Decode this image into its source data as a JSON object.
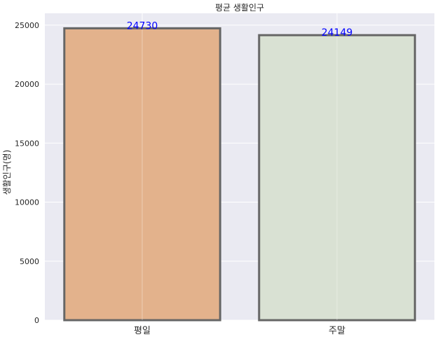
{
  "chart_data": {
    "type": "bar",
    "title": "평균 생활인구",
    "xlabel": "",
    "ylabel": "생활인구(명)",
    "categories": [
      "평일",
      "주말"
    ],
    "values": [
      24730,
      24149
    ],
    "data_labels": [
      "24730",
      "24149"
    ],
    "ylim": [
      0,
      26000
    ],
    "yticks": [
      0,
      5000,
      10000,
      15000,
      20000,
      25000
    ],
    "ytick_labels": [
      "0",
      "5000",
      "10000",
      "15000",
      "20000",
      "25000"
    ],
    "grid": true,
    "bar_colors": [
      "#e3b28c",
      "#d9e1d3"
    ],
    "bar_edge_color": "#666666",
    "label_color": "#0000ff",
    "background_color": "#eaeaf2"
  }
}
